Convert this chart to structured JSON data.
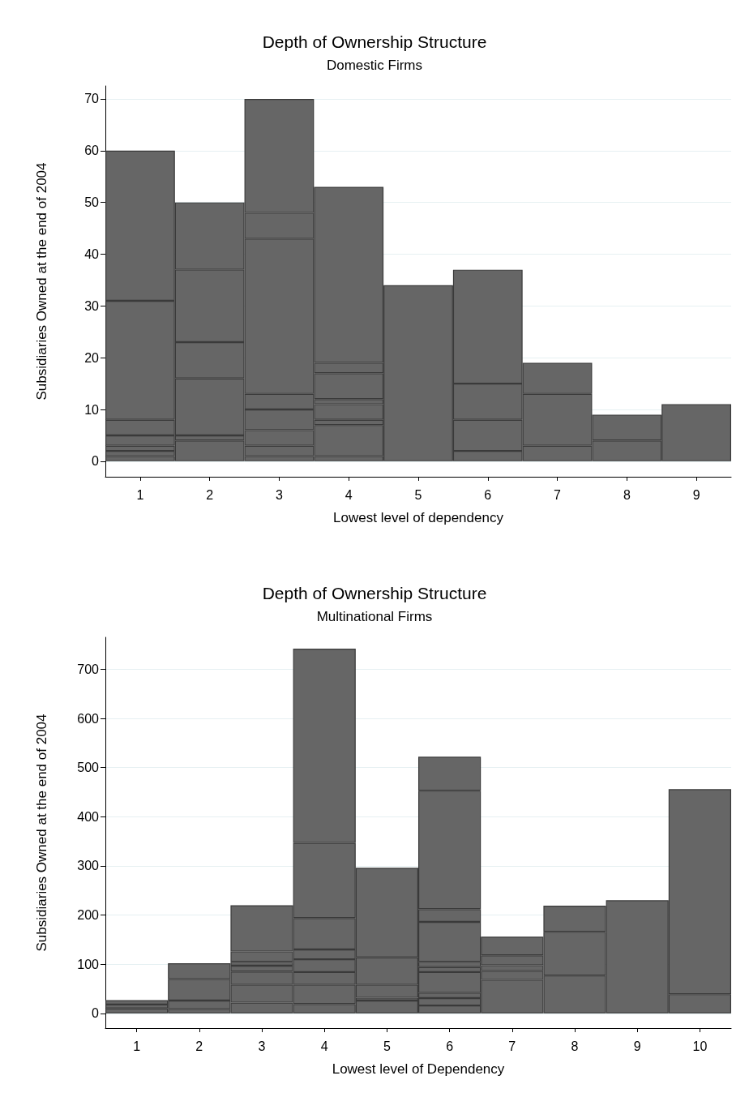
{
  "chart_data": [
    {
      "type": "bar",
      "title": "Depth of Ownership Structure",
      "subtitle": "Domestic Firms",
      "xlabel": "Lowest level of dependency",
      "ylabel": "Subsidiaries Owned at the end of 2004",
      "categories": [
        "1",
        "2",
        "3",
        "4",
        "5",
        "6",
        "7",
        "8",
        "9"
      ],
      "stacked": true,
      "ylim": [
        -3,
        72.5
      ],
      "yticks": [
        0,
        10,
        20,
        30,
        40,
        50,
        60,
        70
      ],
      "grid": "y",
      "series": [
        {
          "color": "#666666",
          "values": [
            1,
            4,
            1,
            1,
            34,
            2,
            3,
            4,
            11
          ]
        },
        {
          "color": "#666666",
          "values": [
            1,
            1,
            2,
            6,
            null,
            6,
            10,
            5,
            null
          ]
        },
        {
          "color": "#666666",
          "values": [
            1,
            11,
            3,
            1,
            null,
            7,
            6,
            null,
            null
          ]
        },
        {
          "color": "#666666",
          "values": [
            2,
            7,
            4,
            3,
            null,
            22,
            null,
            null,
            null
          ]
        },
        {
          "color": "#666666",
          "values": [
            3,
            14,
            3,
            1,
            null,
            null,
            null,
            null,
            null
          ]
        },
        {
          "color": "#666666",
          "values": [
            23,
            13,
            30,
            5,
            null,
            null,
            null,
            null,
            null
          ]
        },
        {
          "color": "#666666",
          "values": [
            29,
            null,
            5,
            2,
            null,
            null,
            null,
            null,
            null
          ]
        },
        {
          "color": "#666666",
          "values": [
            null,
            null,
            22,
            34,
            null,
            null,
            null,
            null,
            null
          ]
        }
      ]
    },
    {
      "type": "bar",
      "title": "Depth of Ownership Structure",
      "subtitle": "Multinational Firms",
      "xlabel": "Lowest level of Dependency",
      "ylabel": "Subsidiaries Owned at the end of 2004",
      "categories": [
        "1",
        "2",
        "3",
        "4",
        "5",
        "6",
        "7",
        "8",
        "9",
        "10"
      ],
      "stacked": true,
      "ylim": [
        -30,
        765
      ],
      "yticks": [
        0,
        100,
        200,
        300,
        400,
        500,
        600,
        700
      ],
      "grid": "y",
      "series": [
        {
          "color": "#666666",
          "values": [
            10,
            9,
            22,
            19,
            26,
            16,
            68,
            77,
            230,
            39
          ]
        },
        {
          "color": "#666666",
          "values": [
            8,
            17,
            36,
            39,
            6,
            15,
            18,
            89,
            null,
            417
          ]
        },
        {
          "color": "#666666",
          "values": [
            9,
            44,
            27,
            26,
            26,
            11,
            12,
            53,
            null,
            null
          ]
        },
        {
          "color": "#666666",
          "values": [
            null,
            32,
            12,
            26,
            56,
            42,
            20,
            null,
            null,
            null
          ]
        },
        {
          "color": "#666666",
          "values": [
            null,
            null,
            8,
            20,
            182,
            10,
            38,
            null,
            null,
            null
          ]
        },
        {
          "color": "#666666",
          "values": [
            null,
            null,
            21,
            64,
            null,
            11,
            null,
            null,
            null,
            null
          ]
        },
        {
          "color": "#666666",
          "values": [
            null,
            null,
            94,
            153,
            null,
            81,
            null,
            null,
            null,
            null
          ]
        },
        {
          "color": "#666666",
          "values": [
            null,
            null,
            null,
            395,
            null,
            26,
            null,
            null,
            null,
            null
          ]
        },
        {
          "color": "#666666",
          "values": [
            null,
            null,
            null,
            null,
            null,
            241,
            null,
            null,
            null,
            null
          ]
        },
        {
          "color": "#666666",
          "values": [
            null,
            null,
            null,
            null,
            null,
            69,
            null,
            null,
            null,
            null
          ]
        }
      ]
    }
  ]
}
